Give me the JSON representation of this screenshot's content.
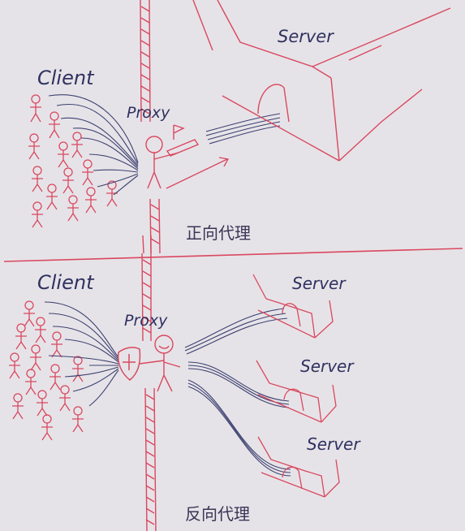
{
  "forward_proxy": {
    "client_label": "Client",
    "proxy_label": "Proxy",
    "server_label": "Server",
    "caption": "正向代理"
  },
  "reverse_proxy": {
    "client_label": "Client",
    "proxy_label": "Proxy",
    "server_labels": [
      "Server",
      "Server",
      "Server"
    ],
    "caption": "反向代理"
  },
  "colors": {
    "paper": "#e6e3e8",
    "red_ink": "#d9485f",
    "blue_ink": "#3d4170"
  }
}
